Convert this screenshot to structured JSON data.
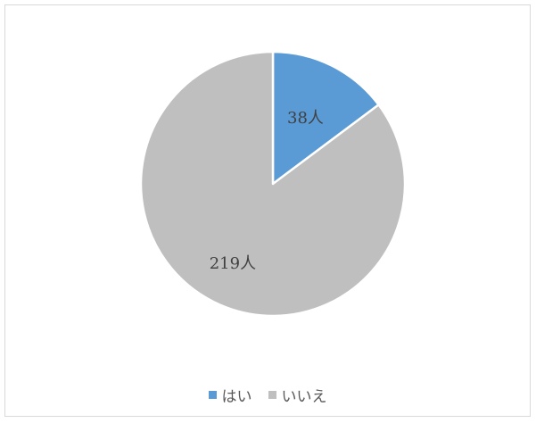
{
  "chart_data": {
    "type": "pie",
    "title": "",
    "categories": [
      "はい",
      "いいえ"
    ],
    "values": [
      38,
      219
    ],
    "data_labels": [
      "38人",
      "219人"
    ],
    "colors": [
      "#5b9bd5",
      "#bfbfbf"
    ],
    "start_angle_deg": 0,
    "direction": "clockwise",
    "legend_position": "bottom",
    "slice_border_color": "#ffffff"
  },
  "legend": {
    "items": [
      {
        "label": "はい",
        "color": "#5b9bd5"
      },
      {
        "label": "いいえ",
        "color": "#bfbfbf"
      }
    ]
  }
}
